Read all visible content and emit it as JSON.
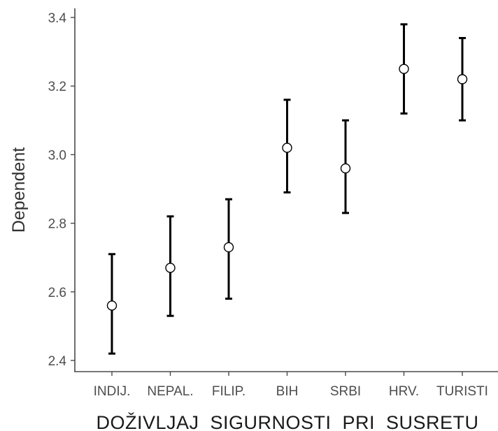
{
  "chart_data": {
    "type": "scatter",
    "title": "",
    "xlabel": "DOŽIVLJAJ  SIGURNOSTI  PRI  SUSRETU",
    "ylabel": "Dependent",
    "categories": [
      "INDIJ.",
      "NEPAL.",
      "FILIP.",
      "BIH",
      "SRBI",
      "HRV.",
      "TURISTI"
    ],
    "series": [
      {
        "values": [
          2.56,
          2.67,
          2.73,
          3.02,
          2.96,
          3.25,
          3.22
        ],
        "lower": [
          2.42,
          2.53,
          2.58,
          2.89,
          2.83,
          3.12,
          3.1
        ],
        "upper": [
          2.71,
          2.82,
          2.87,
          3.16,
          3.1,
          3.38,
          3.34
        ]
      }
    ],
    "ylim": [
      2.38,
      3.42
    ],
    "yticks": [
      2.4,
      2.6,
      2.8,
      3.0,
      3.2,
      3.4
    ],
    "ytick_labels": [
      "2.4",
      "2.6",
      "2.8",
      "3.0",
      "3.2",
      "3.4"
    ],
    "grid": false,
    "legend": "none",
    "point_style": "open-circle",
    "colors": {
      "point_fill": "#ffffff",
      "point_stroke": "#000000",
      "error_bar": "#000000",
      "axis": "#4a4a4a",
      "tick_text": "#4d4d4d"
    }
  }
}
